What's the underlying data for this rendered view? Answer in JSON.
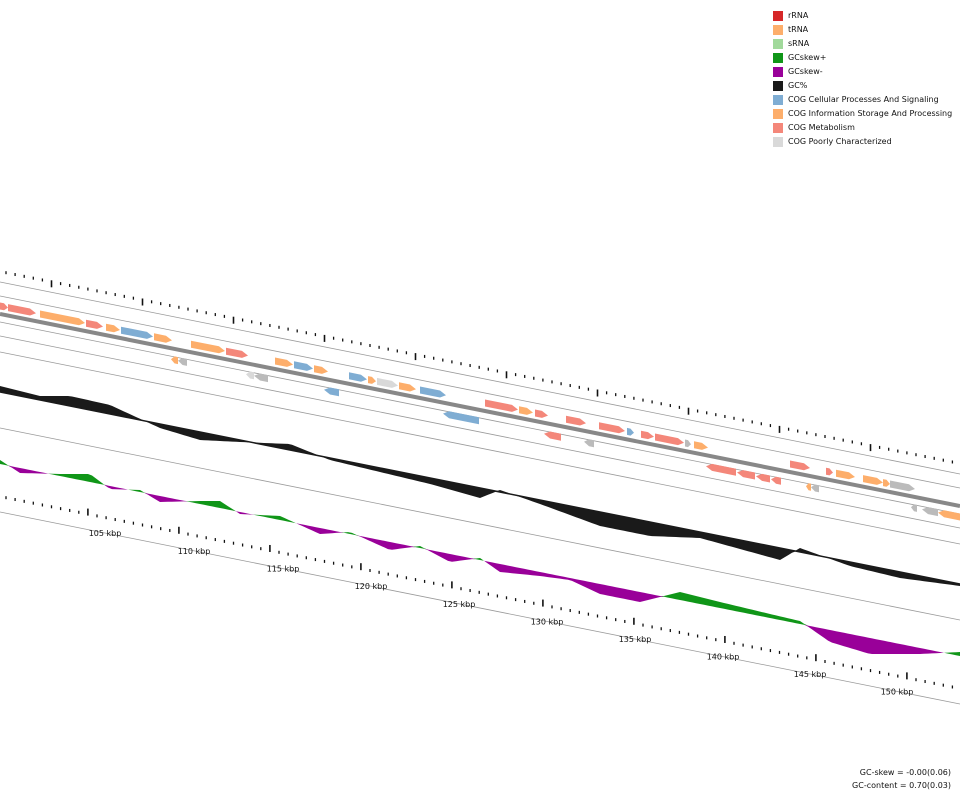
{
  "legend": {
    "items": [
      {
        "label": "rRNA",
        "color": "#d62728"
      },
      {
        "label": "tRNA",
        "color": "#fdae6b"
      },
      {
        "label": "sRNA",
        "color": "#a1d99b"
      },
      {
        "label": "GCskew+",
        "color": "#109618"
      },
      {
        "label": "GCskew-",
        "color": "#990099"
      },
      {
        "label": "GC%",
        "color": "#1a1a1a"
      },
      {
        "label": "COG Cellular Processes And Signaling",
        "color": "#7fadd3"
      },
      {
        "label": "COG Information Storage And Processing",
        "color": "#fdae6b"
      },
      {
        "label": "COG Metabolism",
        "color": "#f4877a"
      },
      {
        "label": "COG Poorly Characterized",
        "color": "#d9d9d9"
      }
    ]
  },
  "axis": {
    "unit": "kbp",
    "labels": [
      "105 kbp",
      "110 kbp",
      "115 kbp",
      "120 kbp",
      "125 kbp",
      "130 kbp",
      "135 kbp",
      "140 kbp",
      "145 kbp",
      "150 kbp"
    ]
  },
  "stats": {
    "gc_skew": "GC-skew = -0.00(0.06)",
    "gc_content": "GC-content = 0.70(0.03)"
  },
  "colors": {
    "backbone": "#888888",
    "track_line": "#999999",
    "gc": "#1a1a1a",
    "skew_pos": "#109618",
    "skew_neg": "#990099",
    "cog_cellular": "#7fadd3",
    "cog_info": "#fdae6b",
    "cog_metabolism": "#f4877a",
    "cog_poor": "#d9d9d9",
    "gray_feature": "#bbbbbb"
  }
}
